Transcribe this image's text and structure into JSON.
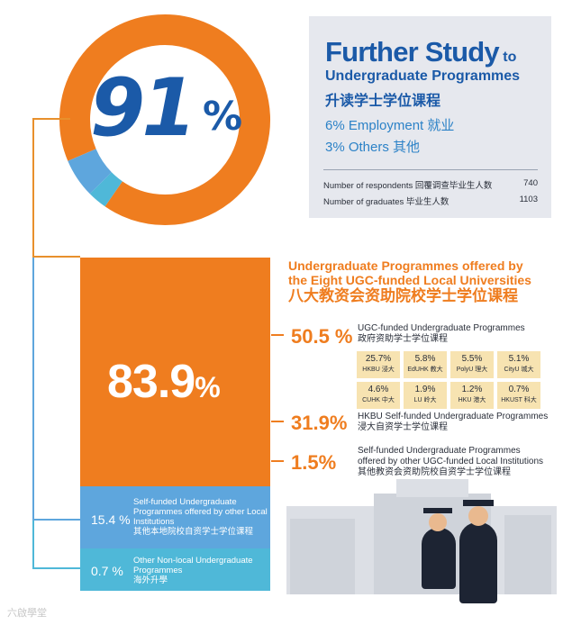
{
  "donut": {
    "main_value": "91",
    "main_symbol": "%",
    "segments": [
      {
        "label": "Further Study",
        "value": 91,
        "color": "#ef7d1f"
      },
      {
        "label": "Employment",
        "value": 6,
        "color": "#5ea6dd"
      },
      {
        "label": "Others",
        "value": 3,
        "color": "#4fb8d8"
      }
    ]
  },
  "info": {
    "title_main": "Further Study",
    "title_small": " to",
    "title_line2": "Undergraduate Programmes",
    "title_cn": "升读学士学位课程",
    "employment": "6% Employment 就业",
    "others": "3% Others 其他",
    "respondents_label": "Number of respondents 回覆调查毕业生人数",
    "respondents_value": "740",
    "graduates_label": "Number of graduates 毕业生人数",
    "graduates_value": "1103"
  },
  "bar": {
    "main_value": "83.9",
    "main_symbol": "%",
    "mid_pct": "15.4 %",
    "mid_label": "Self-funded Undergraduate Programmes offered by other Local Institutions",
    "mid_label_cn": "其他本地院校自资学士学位课程",
    "low_pct": "0.7 %",
    "low_label": "Other Non-local Undergraduate Programmes",
    "low_label_cn": "海外升學"
  },
  "ugc": {
    "heading_line1": "Undergraduate Programmes offered by",
    "heading_line2": "the Eight UGC-funded Local Universities",
    "heading_cn": "八大教资会资助院校学士学位课程",
    "seg1_pct": "50.5 %",
    "seg1_label": "UGC-funded Undergraduate Programmes",
    "seg1_label_cn": "政府资助学士学位课程",
    "seg2_pct": "31.9%",
    "seg2_label": "HKBU Self-funded Undergraduate Programmes",
    "seg2_label_cn": "浸大自资学士学位课程",
    "seg3_pct": "1.5%",
    "seg3_label_1": "Self-funded Undergraduate Programmes",
    "seg3_label_2": "offered by other UGC-funded Local Institutions",
    "seg3_label_cn": "其他教资会资助院校自资学士学位课程",
    "universities": [
      {
        "value": "25.7%",
        "name": "HKBU 浸大"
      },
      {
        "value": "5.8%",
        "name": "EdUHK 教大"
      },
      {
        "value": "5.5%",
        "name": "PolyU 理大"
      },
      {
        "value": "5.1%",
        "name": "CityU 城大"
      },
      {
        "value": "4.6%",
        "name": "CUHK 中大"
      },
      {
        "value": "1.9%",
        "name": "LU 岭大"
      },
      {
        "value": "1.2%",
        "name": "HKU 港大"
      },
      {
        "value": "0.7%",
        "name": "HKUST 科大"
      }
    ]
  },
  "watermark": "六啟學堂",
  "chart_data": [
    {
      "type": "pie",
      "labels": [
        "Further Study",
        "Employment",
        "Others"
      ],
      "values": [
        91,
        6,
        3
      ]
    },
    {
      "type": "bar",
      "categories": [
        "UGC-funded Undergraduate Programmes",
        "HKBU Self-funded Undergraduate Programmes",
        "Self-funded Undergraduate Programmes offered by other UGC-funded Local Institutions",
        "Self-funded Undergraduate Programmes offered by other Local Institutions",
        "Other Non-local Undergraduate Programmes"
      ],
      "values": [
        50.5,
        31.9,
        1.5,
        15.4,
        0.7
      ]
    },
    {
      "type": "table",
      "categories": [
        "HKBU",
        "EdUHK",
        "PolyU",
        "CityU",
        "CUHK",
        "LU",
        "HKU",
        "HKUST"
      ],
      "values": [
        25.7,
        5.8,
        5.5,
        5.1,
        4.6,
        1.9,
        1.2,
        0.7
      ]
    }
  ]
}
